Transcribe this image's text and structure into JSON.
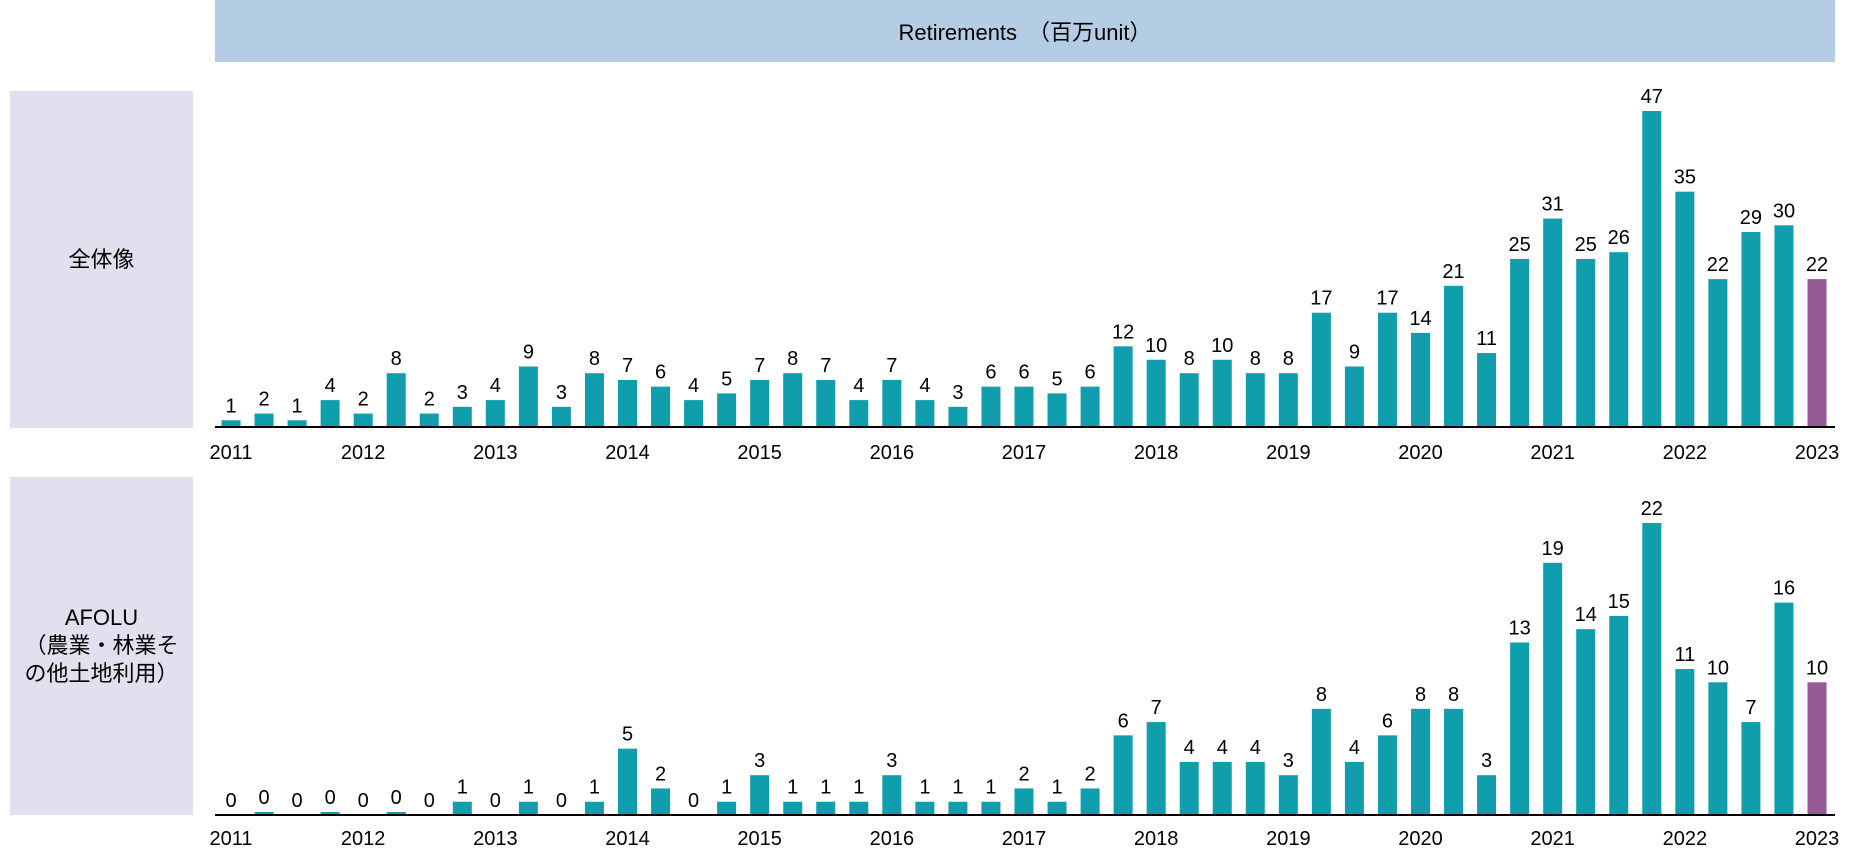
{
  "header": {
    "title": "Retirements　（百万unit）"
  },
  "colors": {
    "bar": "#109ead",
    "highlight": "#955a96",
    "header_bg": "#b4cce4",
    "label_bg": "#e1e0ef"
  },
  "chart_data": [
    {
      "type": "bar",
      "panel_label": "全体像",
      "x_ticks": [
        "2011",
        "2012",
        "2013",
        "2014",
        "2015",
        "2016",
        "2017",
        "2018",
        "2019",
        "2020",
        "2021",
        "2022",
        "2023"
      ],
      "values": [
        1,
        2,
        1,
        4,
        2,
        8,
        2,
        3,
        4,
        9,
        3,
        8,
        7,
        6,
        4,
        5,
        7,
        8,
        7,
        4,
        7,
        4,
        3,
        6,
        6,
        5,
        6,
        12,
        10,
        8,
        10,
        8,
        8,
        17,
        9,
        17,
        14,
        21,
        11,
        25,
        31,
        25,
        26,
        47,
        35,
        22,
        29,
        30,
        22
      ],
      "highlight_last": true,
      "frequency": "quarterly",
      "data_labels": true
    },
    {
      "type": "bar",
      "panel_label": "AFOLU\n（農業・林業そ\nの他土地利用）",
      "x_ticks": [
        "2011",
        "2012",
        "2013",
        "2014",
        "2015",
        "2016",
        "2017",
        "2018",
        "2019",
        "2020",
        "2021",
        "2022",
        "2023"
      ],
      "values": [
        0,
        0,
        0,
        0,
        0,
        0,
        0,
        1,
        0,
        1,
        0,
        1,
        5,
        2,
        0,
        1,
        3,
        1,
        1,
        1,
        3,
        1,
        1,
        1,
        2,
        1,
        2,
        6,
        7,
        4,
        4,
        4,
        3,
        8,
        4,
        6,
        8,
        8,
        3,
        13,
        19,
        14,
        15,
        22,
        11,
        10,
        7,
        16,
        10
      ],
      "highlight_last": true,
      "frequency": "quarterly",
      "data_labels": true
    }
  ]
}
